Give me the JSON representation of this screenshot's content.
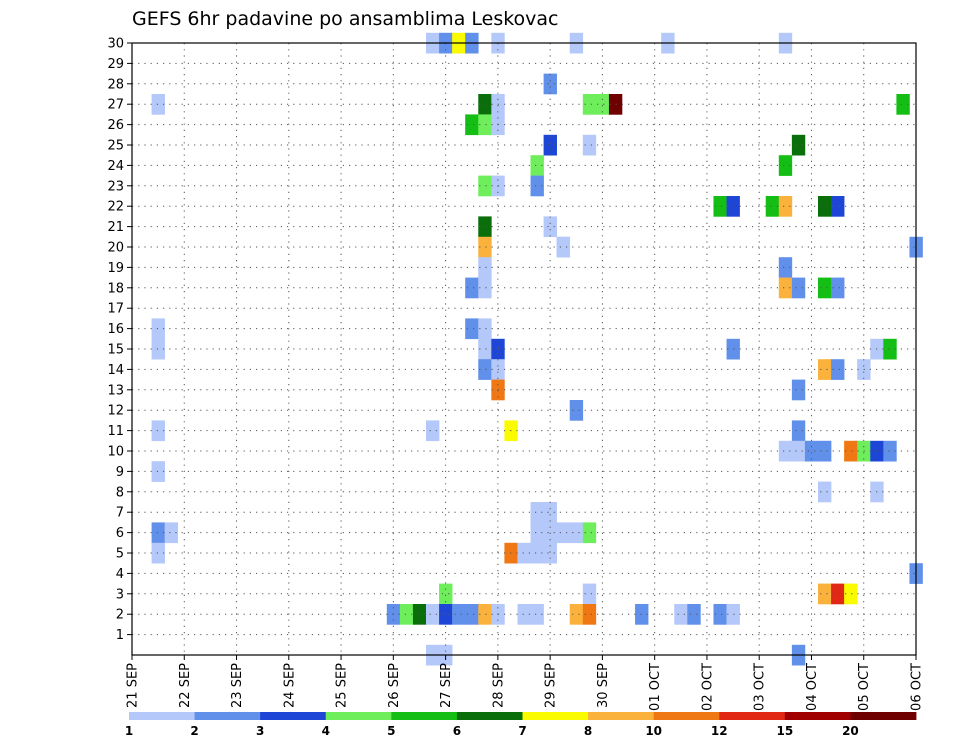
{
  "chart_data": {
    "type": "heatmap",
    "title": "GEFS 6hr padavine po ansamblima Leskovac",
    "y_ticks": [
      "1",
      "2",
      "3",
      "4",
      "5",
      "6",
      "7",
      "8",
      "9",
      "10",
      "11",
      "12",
      "13",
      "14",
      "15",
      "16",
      "17",
      "18",
      "19",
      "20",
      "21",
      "22",
      "23",
      "24",
      "25",
      "26",
      "27",
      "28",
      "29",
      "30"
    ],
    "x_ticks": [
      "21 SEP",
      "22 SEP",
      "23 SEP",
      "24 SEP",
      "25 SEP",
      "26 SEP",
      "27 SEP",
      "28 SEP",
      "29 SEP",
      "30 SEP",
      "01 OCT",
      "02 OCT",
      "03 OCT",
      "04 OCT",
      "05 OCT",
      "06 OCT"
    ],
    "xlim": [
      0,
      15
    ],
    "ylim": [
      0,
      30
    ],
    "grid": true,
    "legend_position": "bottom",
    "legend": {
      "labels": [
        "1",
        "2",
        "3",
        "4",
        "5",
        "6",
        "7",
        "8",
        "10",
        "12",
        "15",
        "20"
      ],
      "colors": [
        "#b4c8fa",
        "#6090ea",
        "#1e46d6",
        "#6eee5a",
        "#14be14",
        "#0a6e0a",
        "#fafa00",
        "#fab23c",
        "#f07814",
        "#e02814",
        "#a00000",
        "#6e0000"
      ]
    },
    "cells": [
      {
        "day": 0.5,
        "member": 27,
        "c": 0
      },
      {
        "day": 0.5,
        "member": 16,
        "c": 0
      },
      {
        "day": 0.5,
        "member": 15,
        "c": 0
      },
      {
        "day": 0.5,
        "member": 11,
        "c": 0
      },
      {
        "day": 0.5,
        "member": 9,
        "c": 0
      },
      {
        "day": 0.5,
        "member": 6,
        "c": 1
      },
      {
        "day": 0.75,
        "member": 6,
        "c": 0
      },
      {
        "day": 0.5,
        "member": 5,
        "c": 0
      },
      {
        "day": 5.75,
        "member": 30,
        "c": 0
      },
      {
        "day": 6.0,
        "member": 30,
        "c": 1
      },
      {
        "day": 6.25,
        "member": 30,
        "c": 6
      },
      {
        "day": 6.5,
        "member": 30,
        "c": 1
      },
      {
        "day": 7.0,
        "member": 30,
        "c": 0
      },
      {
        "day": 8.5,
        "member": 30,
        "c": 0
      },
      {
        "day": 10.25,
        "member": 30,
        "c": 0
      },
      {
        "day": 12.5,
        "member": 30,
        "c": 0
      },
      {
        "day": 8.0,
        "member": 28,
        "c": 1
      },
      {
        "day": 6.75,
        "member": 27,
        "c": 5
      },
      {
        "day": 7.0,
        "member": 27,
        "c": 0
      },
      {
        "day": 8.75,
        "member": 27,
        "c": 3
      },
      {
        "day": 9.0,
        "member": 27,
        "c": 3
      },
      {
        "day": 9.25,
        "member": 27,
        "c": 11
      },
      {
        "day": 14.75,
        "member": 27,
        "c": 4
      },
      {
        "day": 6.5,
        "member": 26,
        "c": 4
      },
      {
        "day": 6.75,
        "member": 26,
        "c": 3
      },
      {
        "day": 7.0,
        "member": 26,
        "c": 0
      },
      {
        "day": 8.0,
        "member": 25,
        "c": 2
      },
      {
        "day": 8.75,
        "member": 25,
        "c": 0
      },
      {
        "day": 12.75,
        "member": 25,
        "c": 5
      },
      {
        "day": 7.75,
        "member": 24,
        "c": 3
      },
      {
        "day": 12.5,
        "member": 24,
        "c": 4
      },
      {
        "day": 6.75,
        "member": 23,
        "c": 3
      },
      {
        "day": 7.0,
        "member": 23,
        "c": 0
      },
      {
        "day": 7.75,
        "member": 23,
        "c": 1
      },
      {
        "day": 11.25,
        "member": 22,
        "c": 4
      },
      {
        "day": 11.5,
        "member": 22,
        "c": 2
      },
      {
        "day": 12.25,
        "member": 22,
        "c": 4
      },
      {
        "day": 12.5,
        "member": 22,
        "c": 7
      },
      {
        "day": 13.25,
        "member": 22,
        "c": 5
      },
      {
        "day": 13.5,
        "member": 22,
        "c": 2
      },
      {
        "day": 6.75,
        "member": 21,
        "c": 5
      },
      {
        "day": 8.0,
        "member": 21,
        "c": 0
      },
      {
        "day": 6.75,
        "member": 20,
        "c": 7
      },
      {
        "day": 8.25,
        "member": 20,
        "c": 0
      },
      {
        "day": 15.0,
        "member": 20,
        "c": 1
      },
      {
        "day": 6.75,
        "member": 19,
        "c": 0
      },
      {
        "day": 12.5,
        "member": 19,
        "c": 1
      },
      {
        "day": 8.25,
        "member": 20,
        "c": 0
      },
      {
        "day": 6.5,
        "member": 18,
        "c": 1
      },
      {
        "day": 6.75,
        "member": 18,
        "c": 0
      },
      {
        "day": 12.5,
        "member": 18,
        "c": 7
      },
      {
        "day": 12.75,
        "member": 18,
        "c": 1
      },
      {
        "day": 13.25,
        "member": 18,
        "c": 4
      },
      {
        "day": 13.5,
        "member": 18,
        "c": 1
      },
      {
        "day": 6.5,
        "member": 16,
        "c": 1
      },
      {
        "day": 6.75,
        "member": 16,
        "c": 0
      },
      {
        "day": 6.75,
        "member": 15,
        "c": 0
      },
      {
        "day": 7.0,
        "member": 15,
        "c": 2
      },
      {
        "day": 11.5,
        "member": 15,
        "c": 1
      },
      {
        "day": 14.25,
        "member": 15,
        "c": 0
      },
      {
        "day": 14.5,
        "member": 15,
        "c": 4
      },
      {
        "day": 6.75,
        "member": 14,
        "c": 1
      },
      {
        "day": 7.0,
        "member": 14,
        "c": 0
      },
      {
        "day": 13.25,
        "member": 14,
        "c": 7
      },
      {
        "day": 13.5,
        "member": 14,
        "c": 1
      },
      {
        "day": 14.0,
        "member": 14,
        "c": 0
      },
      {
        "day": 7.0,
        "member": 13,
        "c": 8
      },
      {
        "day": 12.75,
        "member": 13,
        "c": 1
      },
      {
        "day": 8.5,
        "member": 12,
        "c": 1
      },
      {
        "day": 12.75,
        "member": 11,
        "c": 1
      },
      {
        "day": 5.75,
        "member": 11,
        "c": 0
      },
      {
        "day": 7.25,
        "member": 11,
        "c": 6
      },
      {
        "day": 12.5,
        "member": 10,
        "c": 0
      },
      {
        "day": 12.75,
        "member": 10,
        "c": 0
      },
      {
        "day": 13.0,
        "member": 10,
        "c": 1
      },
      {
        "day": 13.25,
        "member": 10,
        "c": 1
      },
      {
        "day": 13.75,
        "member": 10,
        "c": 8
      },
      {
        "day": 14.0,
        "member": 10,
        "c": 3
      },
      {
        "day": 14.25,
        "member": 10,
        "c": 2
      },
      {
        "day": 14.5,
        "member": 10,
        "c": 1
      },
      {
        "day": 13.25,
        "member": 8,
        "c": 0
      },
      {
        "day": 14.25,
        "member": 8,
        "c": 0
      },
      {
        "day": 7.75,
        "member": 7,
        "c": 0
      },
      {
        "day": 8.0,
        "member": 7,
        "c": 0
      },
      {
        "day": 7.75,
        "member": 6,
        "c": 0
      },
      {
        "day": 8.0,
        "member": 6,
        "c": 0
      },
      {
        "day": 8.25,
        "member": 6,
        "c": 0
      },
      {
        "day": 8.5,
        "member": 6,
        "c": 0
      },
      {
        "day": 8.75,
        "member": 6,
        "c": 3
      },
      {
        "day": 7.25,
        "member": 5,
        "c": 8
      },
      {
        "day": 7.5,
        "member": 5,
        "c": 0
      },
      {
        "day": 7.75,
        "member": 5,
        "c": 0
      },
      {
        "day": 8.0,
        "member": 5,
        "c": 0
      },
      {
        "day": 15.0,
        "member": 4,
        "c": 1
      },
      {
        "day": 6.0,
        "member": 3,
        "c": 3
      },
      {
        "day": 8.75,
        "member": 3,
        "c": 0
      },
      {
        "day": 13.25,
        "member": 3,
        "c": 7
      },
      {
        "day": 13.5,
        "member": 3,
        "c": 9
      },
      {
        "day": 13.75,
        "member": 3,
        "c": 6
      },
      {
        "day": 5.0,
        "member": 2,
        "c": 1
      },
      {
        "day": 5.25,
        "member": 2,
        "c": 3
      },
      {
        "day": 5.5,
        "member": 2,
        "c": 5
      },
      {
        "day": 5.75,
        "member": 2,
        "c": 0
      },
      {
        "day": 6.0,
        "member": 2,
        "c": 2
      },
      {
        "day": 6.25,
        "member": 2,
        "c": 1
      },
      {
        "day": 6.5,
        "member": 2,
        "c": 1
      },
      {
        "day": 6.75,
        "member": 2,
        "c": 7
      },
      {
        "day": 7.0,
        "member": 2,
        "c": 0
      },
      {
        "day": 7.5,
        "member": 2,
        "c": 0
      },
      {
        "day": 7.75,
        "member": 2,
        "c": 0
      },
      {
        "day": 8.5,
        "member": 2,
        "c": 7
      },
      {
        "day": 8.75,
        "member": 2,
        "c": 8
      },
      {
        "day": 9.75,
        "member": 2,
        "c": 1
      },
      {
        "day": 10.5,
        "member": 2,
        "c": 0
      },
      {
        "day": 10.75,
        "member": 2,
        "c": 1
      },
      {
        "day": 11.25,
        "member": 2,
        "c": 1
      },
      {
        "day": 11.5,
        "member": 2,
        "c": 0
      },
      {
        "day": 5.75,
        "member": 0,
        "c": 0
      },
      {
        "day": 6.0,
        "member": 0,
        "c": 0
      },
      {
        "day": 12.75,
        "member": 0,
        "c": 1
      }
    ]
  }
}
